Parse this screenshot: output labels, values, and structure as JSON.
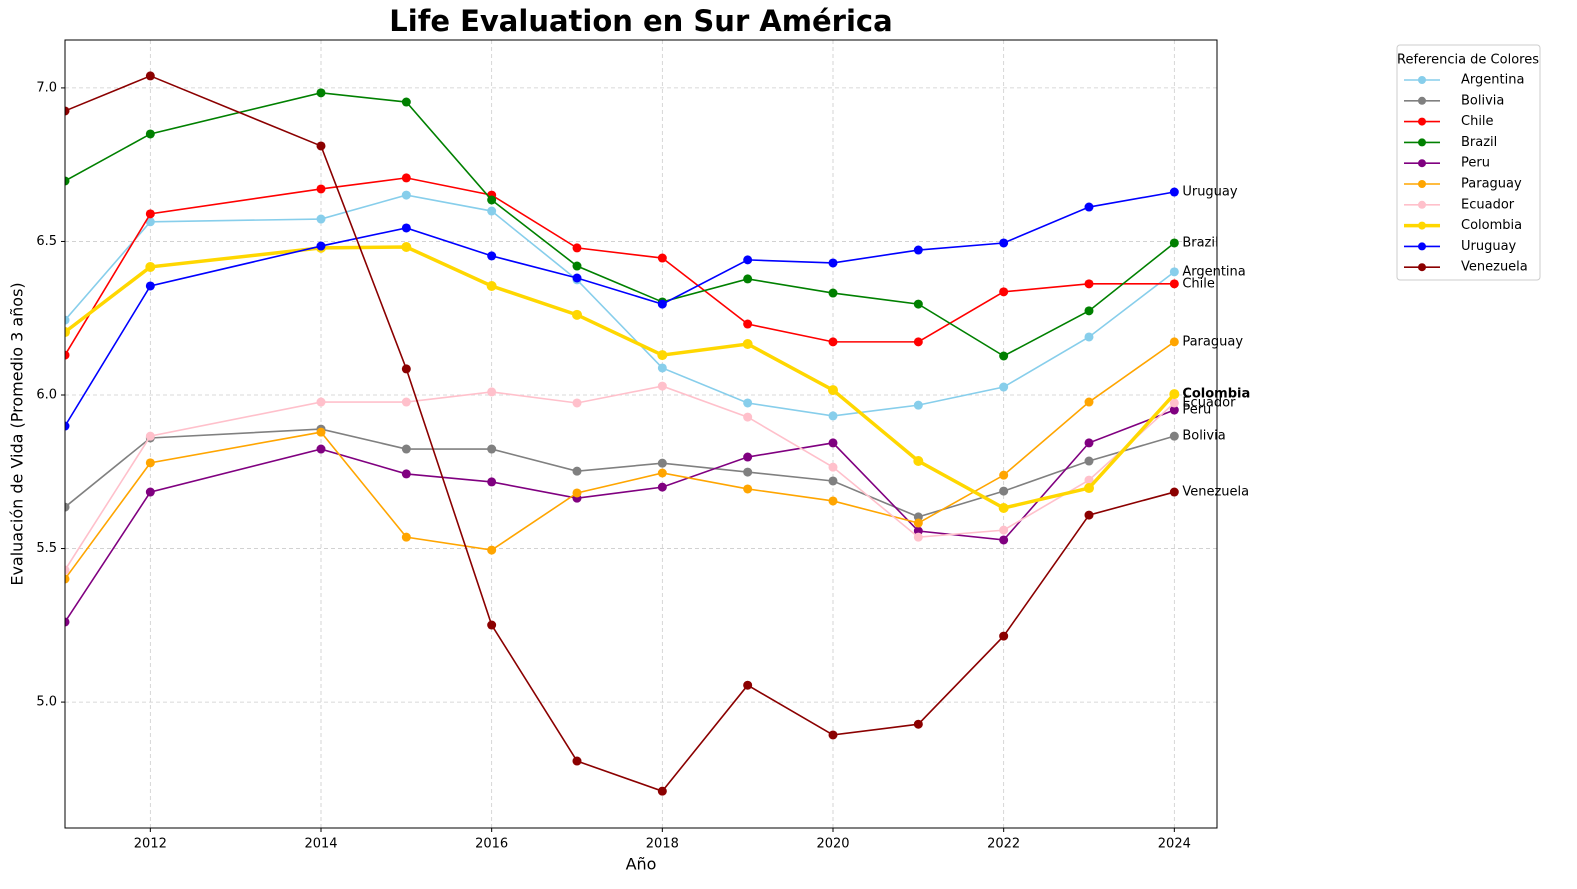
{
  "chart_data": {
    "type": "line",
    "title": "Life Evaluation en Sur América",
    "x_label": "Año",
    "y_label": "Evaluación de Vida (Promedio 3 años)",
    "legend_title": "Referencia de Colores",
    "legend": "outside upper right",
    "grid": true,
    "highlight": "Colombia",
    "x": [
      2011,
      2012,
      2014,
      2015,
      2016,
      2017,
      2018,
      2019,
      2020,
      2021,
      2022,
      2023,
      2024
    ],
    "xlim": [
      2011,
      2024.5
    ],
    "xticks": [
      2012,
      2014,
      2016,
      2018,
      2020,
      2022,
      2024
    ],
    "ylim": [
      4.59,
      7.156
    ],
    "yticks": [
      {
        "value": 5,
        "label": "5.0"
      },
      5.5,
      {
        "value": 6,
        "label": "6.0"
      },
      6.5,
      {
        "value": 7,
        "label": "7.0"
      }
    ],
    "series": [
      {
        "name": "Argentina",
        "color": "#87ceeb",
        "values": [
          6.244,
          6.564,
          6.573,
          6.651,
          6.599,
          6.375,
          6.088,
          5.974,
          5.932,
          5.967,
          6.026,
          6.189,
          6.401
        ]
      },
      {
        "name": "Bolivia",
        "color": "#808080",
        "values": [
          5.635,
          5.86,
          5.889,
          5.824,
          5.824,
          5.752,
          5.778,
          5.749,
          5.72,
          5.603,
          5.687,
          5.785,
          5.866
        ]
      },
      {
        "name": "Chile",
        "color": "#ff0000",
        "values": [
          6.13,
          6.59,
          6.671,
          6.707,
          6.651,
          6.479,
          6.446,
          6.231,
          6.173,
          6.173,
          6.336,
          6.362,
          6.362
        ]
      },
      {
        "name": "Brazil",
        "color": "#008000",
        "values": [
          6.697,
          6.85,
          6.984,
          6.954,
          6.635,
          6.42,
          6.303,
          6.378,
          6.332,
          6.296,
          6.127,
          6.274,
          6.495
        ]
      },
      {
        "name": "Peru",
        "color": "#800080",
        "values": [
          5.261,
          5.684,
          5.824,
          5.743,
          5.717,
          5.664,
          5.7,
          5.798,
          5.844,
          5.557,
          5.528,
          5.844,
          5.951
        ]
      },
      {
        "name": "Paraguay",
        "color": "#ffa500",
        "values": [
          5.401,
          5.779,
          5.879,
          5.537,
          5.495,
          5.681,
          5.746,
          5.694,
          5.655,
          5.583,
          5.739,
          5.977,
          6.173
        ]
      },
      {
        "name": "Ecuador",
        "color": "#ffc0cb",
        "values": [
          5.43,
          5.866,
          5.977,
          5.977,
          6.01,
          5.974,
          6.029,
          5.928,
          5.765,
          5.537,
          5.56,
          5.723,
          5.974
        ]
      },
      {
        "name": "Colombia",
        "color": "#ffd700",
        "values": [
          6.205,
          6.417,
          6.479,
          6.482,
          6.355,
          6.261,
          6.13,
          6.166,
          6.016,
          5.785,
          5.632,
          5.697,
          6.003
        ]
      },
      {
        "name": "Uruguay",
        "color": "#0000ff",
        "values": [
          5.899,
          6.355,
          6.485,
          6.544,
          6.453,
          6.381,
          6.296,
          6.44,
          6.43,
          6.472,
          6.495,
          6.612,
          6.661
        ]
      },
      {
        "name": "Venezuela",
        "color": "#8b0000",
        "values": [
          6.925,
          7.039,
          6.811,
          6.085,
          5.251,
          4.808,
          4.71,
          5.055,
          4.893,
          4.928,
          5.215,
          5.609,
          5.684
        ]
      }
    ]
  }
}
